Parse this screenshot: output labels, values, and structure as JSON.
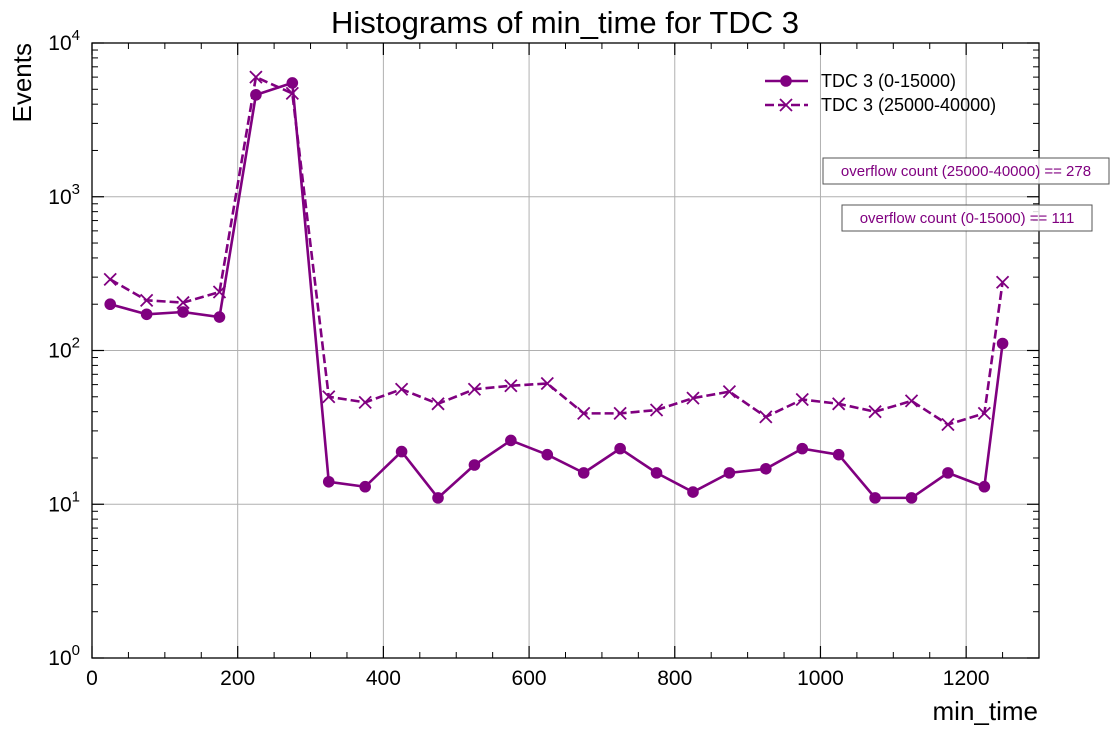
{
  "chart_data": {
    "type": "line",
    "title": "Histograms of min_time for TDC 3",
    "xlabel": "min_time",
    "ylabel": "Events",
    "xlim": [
      0,
      1300
    ],
    "ylim": [
      1,
      10000
    ],
    "yscale": "log",
    "grid": true,
    "legend_position": "top-right",
    "color": "#800080",
    "x_ticks": [
      {
        "value": 0,
        "label": "0"
      },
      {
        "value": 200,
        "label": "200"
      },
      {
        "value": 400,
        "label": "400"
      },
      {
        "value": 600,
        "label": "600"
      },
      {
        "value": 800,
        "label": "800"
      },
      {
        "value": 1000,
        "label": "1000"
      },
      {
        "value": 1200,
        "label": "1200"
      }
    ],
    "y_ticks": [
      {
        "value": 1,
        "base": "10",
        "exp": "0"
      },
      {
        "value": 10,
        "base": "10",
        "exp": "1"
      },
      {
        "value": 100,
        "base": "10",
        "exp": "2"
      },
      {
        "value": 1000,
        "base": "10",
        "exp": "3"
      },
      {
        "value": 10000,
        "base": "10",
        "exp": "4"
      }
    ],
    "x": [
      25,
      75,
      125,
      175,
      225,
      275,
      325,
      375,
      425,
      475,
      525,
      575,
      625,
      675,
      725,
      775,
      825,
      875,
      925,
      975,
      1025,
      1075,
      1125,
      1175,
      1225,
      1250
    ],
    "series": [
      {
        "name": "TDC 3 (0-15000)",
        "style": "solid",
        "marker": "circle",
        "values": [
          200,
          172,
          178,
          165,
          4600,
          5500,
          14,
          13,
          22,
          11,
          18,
          26,
          21,
          16,
          23,
          16,
          12,
          16,
          17,
          23,
          21,
          11,
          11,
          16,
          13,
          111
        ]
      },
      {
        "name": "TDC 3 (25000-40000)",
        "style": "dashed",
        "marker": "x",
        "values": [
          290,
          212,
          205,
          240,
          6000,
          4700,
          50,
          46,
          56,
          45,
          56,
          59,
          61,
          39,
          39,
          41,
          49,
          54,
          37,
          48,
          45,
          40,
          47,
          33,
          39,
          278
        ]
      }
    ],
    "annotations": [
      {
        "text": "overflow count (25000-40000) == 278"
      },
      {
        "text": "overflow count (0-15000) == 111"
      }
    ]
  }
}
